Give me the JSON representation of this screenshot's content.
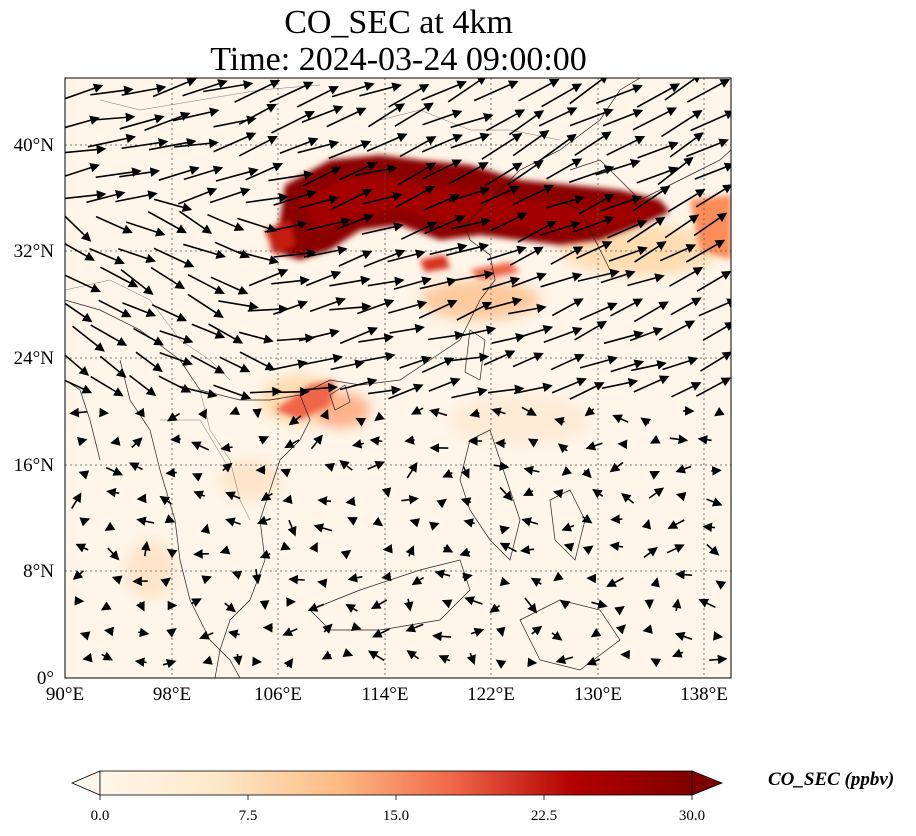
{
  "title": {
    "line1": "CO_SEC at 4km",
    "line2": "Time: 2024-03-24 09:00:00"
  },
  "map": {
    "lon_range": [
      90,
      140
    ],
    "lat_range": [
      0,
      45
    ],
    "lon_ticks": [
      "90°E",
      "98°E",
      "106°E",
      "114°E",
      "122°E",
      "130°E",
      "138°E"
    ],
    "lat_ticks": [
      "0°",
      "8°N",
      "16°N",
      "24°N",
      "32°N",
      "40°N"
    ],
    "field_colormap": "OrRd",
    "gridlines": "dotted",
    "vectors": "wind"
  },
  "colorbar": {
    "label": "CO_SEC (ppbv)",
    "ticks": [
      "0.0",
      "7.5",
      "15.0",
      "22.5",
      "30.0"
    ],
    "min": 0,
    "max": 30,
    "extend": "both"
  }
}
